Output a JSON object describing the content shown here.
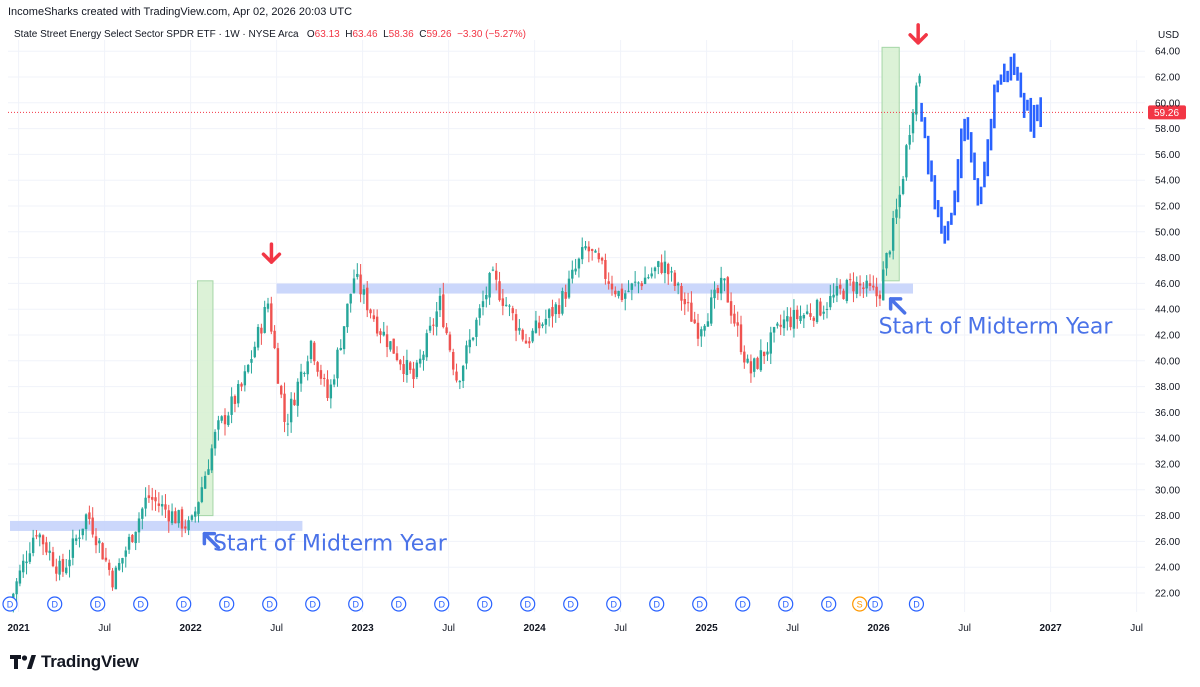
{
  "header": {
    "credit": "IncomeSharks created with TradingView.com, Apr 02, 2026 20:03 UTC"
  },
  "legend": {
    "symbol": "State Street Energy Select Sector SPDR ETF · 1W · NYSE Arca",
    "open_label": "O",
    "open": "63.13",
    "high_label": "H",
    "high": "63.46",
    "low_label": "L",
    "low": "58.36",
    "close_label": "C",
    "close": "59.26",
    "change": "−3.30 (−5.27%)"
  },
  "footer": {
    "brand": "TradingView"
  },
  "colors": {
    "up": "#26a69a",
    "down": "#ef5350",
    "projection": "#2962ff",
    "zone": "#c5d3fb",
    "box": "#d6f0d0",
    "arrow_red": "#f23645",
    "arrow_blue": "#4a72e8",
    "price_line": "#f23645"
  },
  "chart_data": {
    "type": "candlestick",
    "currency": "USD",
    "y_ticks": [
      "22.00",
      "24.00",
      "26.00",
      "28.00",
      "30.00",
      "32.00",
      "34.00",
      "36.00",
      "38.00",
      "40.00",
      "42.00",
      "44.00",
      "46.00",
      "48.00",
      "50.00",
      "52.00",
      "54.00",
      "56.00",
      "58.00",
      "60.00",
      "62.00",
      "64.00"
    ],
    "ylim": [
      21.0,
      65.5
    ],
    "x_ticks": [
      {
        "label": "2021",
        "year": true,
        "t": 2021.0
      },
      {
        "label": "Jul",
        "year": false,
        "t": 2021.5
      },
      {
        "label": "2022",
        "year": true,
        "t": 2022.0
      },
      {
        "label": "Jul",
        "year": false,
        "t": 2022.5
      },
      {
        "label": "2023",
        "year": true,
        "t": 2023.0
      },
      {
        "label": "Jul",
        "year": false,
        "t": 2023.5
      },
      {
        "label": "2024",
        "year": true,
        "t": 2024.0
      },
      {
        "label": "Jul",
        "year": false,
        "t": 2024.5
      },
      {
        "label": "2025",
        "year": true,
        "t": 2025.0
      },
      {
        "label": "Jul",
        "year": false,
        "t": 2025.5
      },
      {
        "label": "2026",
        "year": true,
        "t": 2026.0
      },
      {
        "label": "Jul",
        "year": false,
        "t": 2026.5
      },
      {
        "label": "2027",
        "year": true,
        "t": 2027.0
      },
      {
        "label": "Jul",
        "year": false,
        "t": 2027.5
      }
    ],
    "last_price": "59.26",
    "price_key_points": [
      [
        2020.95,
        21.3
      ],
      [
        2021.1,
        27.0
      ],
      [
        2021.25,
        23.5
      ],
      [
        2021.4,
        28.2
      ],
      [
        2021.55,
        23.0
      ],
      [
        2021.75,
        29.5
      ],
      [
        2022.0,
        27.0
      ],
      [
        2022.15,
        34.5
      ],
      [
        2022.3,
        38.0
      ],
      [
        2022.45,
        44.5
      ],
      [
        2022.55,
        35.0
      ],
      [
        2022.7,
        41.5
      ],
      [
        2022.8,
        37.0
      ],
      [
        2022.95,
        46.5
      ],
      [
        2023.1,
        42.5
      ],
      [
        2023.3,
        38.5
      ],
      [
        2023.45,
        44.5
      ],
      [
        2023.55,
        38.5
      ],
      [
        2023.75,
        46.5
      ],
      [
        2023.95,
        41.5
      ],
      [
        2024.15,
        44.5
      ],
      [
        2024.3,
        48.8
      ],
      [
        2024.5,
        45.0
      ],
      [
        2024.75,
        47.5
      ],
      [
        2024.95,
        42.5
      ],
      [
        2025.1,
        46.0
      ],
      [
        2025.25,
        39.0
      ],
      [
        2025.45,
        43.0
      ],
      [
        2025.65,
        44.0
      ],
      [
        2025.85,
        46.0
      ],
      [
        2026.0,
        45.0
      ],
      [
        2026.12,
        52.5
      ],
      [
        2026.2,
        60.0
      ],
      [
        2026.25,
        63.1
      ]
    ],
    "projection_key_points": [
      [
        2026.25,
        59.3
      ],
      [
        2026.33,
        52.0
      ],
      [
        2026.4,
        49.8
      ],
      [
        2026.5,
        58.5
      ],
      [
        2026.58,
        51.5
      ],
      [
        2026.68,
        61.5
      ],
      [
        2026.78,
        63.0
      ],
      [
        2026.88,
        58.5
      ],
      [
        2026.95,
        60.0
      ]
    ],
    "support_zones": [
      {
        "from": 2020.95,
        "to": 2022.65,
        "price": 27.2
      },
      {
        "from": 2022.5,
        "to": 2026.2,
        "price": 45.6
      }
    ],
    "highlight_boxes": [
      {
        "from": 2022.04,
        "to": 2022.13,
        "low": 28.0,
        "high": 46.2
      },
      {
        "from": 2026.02,
        "to": 2026.12,
        "low": 46.2,
        "high": 64.3
      }
    ],
    "down_arrows": [
      {
        "t": 2022.47,
        "price": 47.8
      },
      {
        "t": 2026.23,
        "price": 64.8
      }
    ],
    "corner_arrows": [
      {
        "t": 2022.08,
        "price": 26.6
      },
      {
        "t": 2026.07,
        "price": 44.8
      }
    ],
    "annotations": [
      {
        "text": "Start of Midterm Year",
        "t": 2022.13,
        "price": 25.3
      },
      {
        "text": "Start of Midterm Year",
        "t": 2026.0,
        "price": 42.1
      }
    ],
    "dividend_marker": "D",
    "split_marker": "S",
    "event_markers": [
      {
        "t": 2020.95,
        "kind": "D"
      },
      {
        "t": 2021.21,
        "kind": "D"
      },
      {
        "t": 2021.46,
        "kind": "D"
      },
      {
        "t": 2021.71,
        "kind": "D"
      },
      {
        "t": 2021.96,
        "kind": "D"
      },
      {
        "t": 2022.21,
        "kind": "D"
      },
      {
        "t": 2022.46,
        "kind": "D"
      },
      {
        "t": 2022.71,
        "kind": "D"
      },
      {
        "t": 2022.96,
        "kind": "D"
      },
      {
        "t": 2023.21,
        "kind": "D"
      },
      {
        "t": 2023.46,
        "kind": "D"
      },
      {
        "t": 2023.71,
        "kind": "D"
      },
      {
        "t": 2023.96,
        "kind": "D"
      },
      {
        "t": 2024.21,
        "kind": "D"
      },
      {
        "t": 2024.46,
        "kind": "D"
      },
      {
        "t": 2024.71,
        "kind": "D"
      },
      {
        "t": 2024.96,
        "kind": "D"
      },
      {
        "t": 2025.21,
        "kind": "D"
      },
      {
        "t": 2025.46,
        "kind": "D"
      },
      {
        "t": 2025.71,
        "kind": "D"
      },
      {
        "t": 2025.89,
        "kind": "S"
      },
      {
        "t": 2025.98,
        "kind": "D"
      },
      {
        "t": 2026.22,
        "kind": "D"
      }
    ]
  }
}
